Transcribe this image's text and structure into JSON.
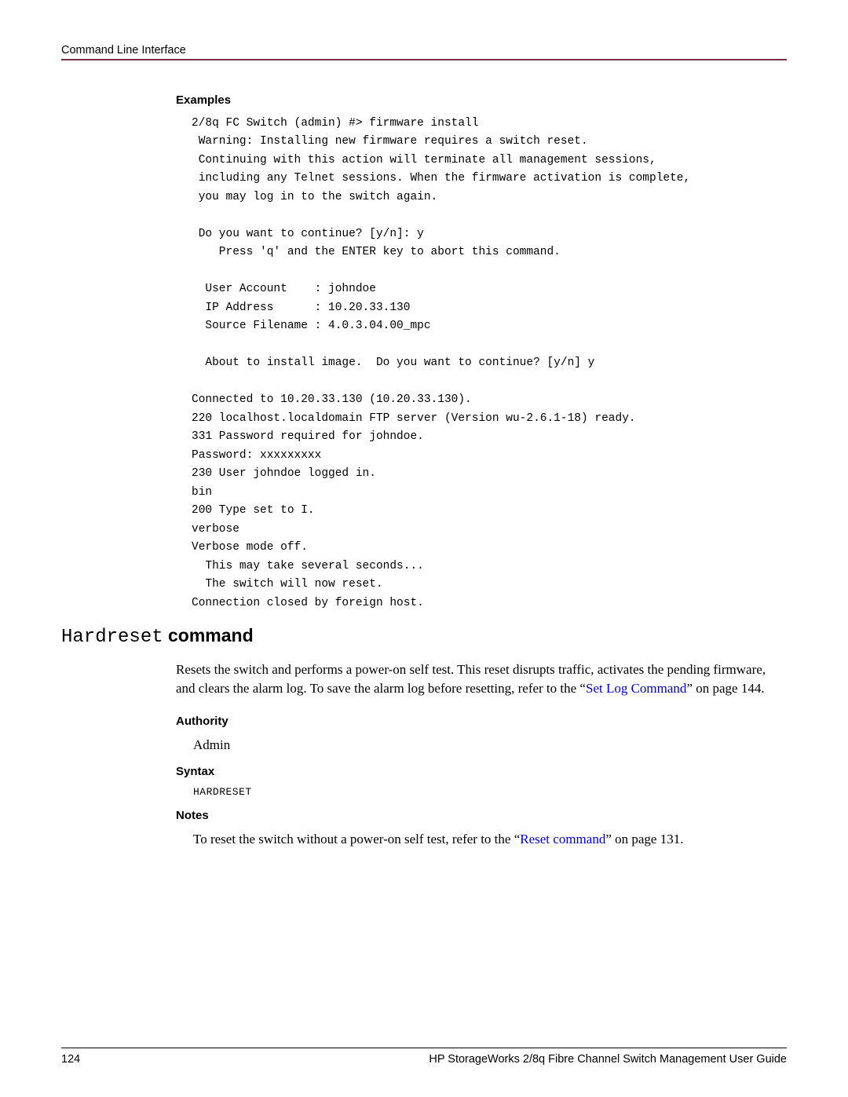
{
  "header": {
    "title": "Command Line Interface"
  },
  "examples": {
    "label": "Examples",
    "code": "2/8q FC Switch (admin) #> firmware install\n Warning: Installing new firmware requires a switch reset.\n Continuing with this action will terminate all management sessions,\n including any Telnet sessions. When the firmware activation is complete,\n you may log in to the switch again.\n\n Do you want to continue? [y/n]: y\n    Press 'q' and the ENTER key to abort this command.\n\n  User Account    : johndoe\n  IP Address      : 10.20.33.130\n  Source Filename : 4.0.3.04.00_mpc\n\n  About to install image.  Do you want to continue? [y/n] y\n\nConnected to 10.20.33.130 (10.20.33.130).\n220 localhost.localdomain FTP server (Version wu-2.6.1-18) ready.\n331 Password required for johndoe.\nPassword: xxxxxxxxx\n230 User johndoe logged in.\nbin\n200 Type set to I.\nverbose\nVerbose mode off.\n  This may take several seconds...\n  The switch will now reset.\nConnection closed by foreign host."
  },
  "hardreset": {
    "cmd_name": "Hardreset",
    "cmd_word": " command",
    "description_pre": "Resets the switch and performs a power-on self test. This reset disrupts traffic, activates the pending firmware, and clears the alarm log. To save the alarm log before resetting, refer to the “",
    "description_link": "Set Log Command",
    "description_post": "” on page 144.",
    "authority": {
      "label": "Authority",
      "value": "Admin"
    },
    "syntax": {
      "label": "Syntax",
      "value": "HARDRESET"
    },
    "notes": {
      "label": "Notes",
      "text_pre": "To reset the switch without a power-on self test, refer to the “",
      "link": "Reset command",
      "text_post": "” on page 131."
    }
  },
  "footer": {
    "page_number": "124",
    "guide_title": "HP StorageWorks 2/8q Fibre Channel Switch Management User Guide"
  },
  "colors": {
    "rule": "#7a2e4a",
    "link": "#0000cc",
    "text": "#000000",
    "background": "#ffffff"
  }
}
